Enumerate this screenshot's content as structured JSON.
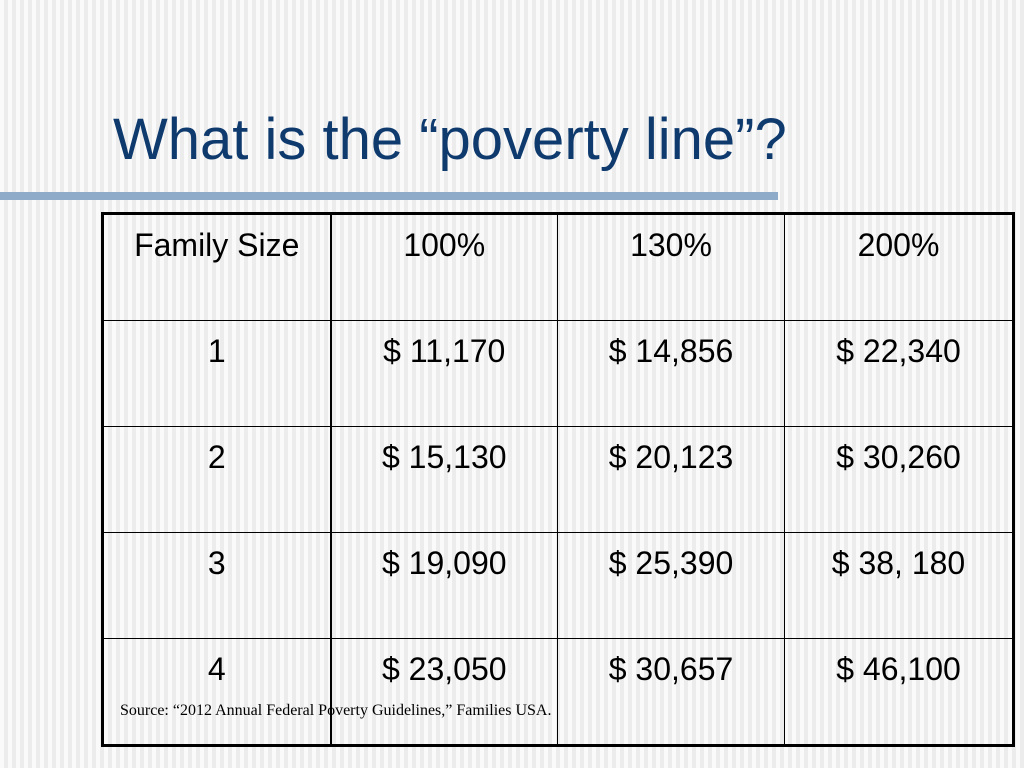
{
  "slide": {
    "title": "What is the “poverty line”?",
    "source": "Source: “2012 Annual Federal Poverty Guidelines,” Families USA."
  },
  "table": {
    "headers": [
      "Family Size",
      "100%",
      "130%",
      "200%"
    ],
    "rows": [
      [
        "1",
        "$ 11,170",
        "$ 14,856",
        "$ 22,340"
      ],
      [
        "2",
        "$ 15,130",
        "$ 20,123",
        "$ 30,260"
      ],
      [
        "3",
        "$ 19,090",
        "$ 25,390",
        "$ 38, 180"
      ],
      [
        "4",
        "$ 23,050",
        "$ 30,657",
        "$ 46,100"
      ]
    ]
  },
  "colors": {
    "title": "#0f3a6e",
    "rule": "#8eacc9"
  }
}
